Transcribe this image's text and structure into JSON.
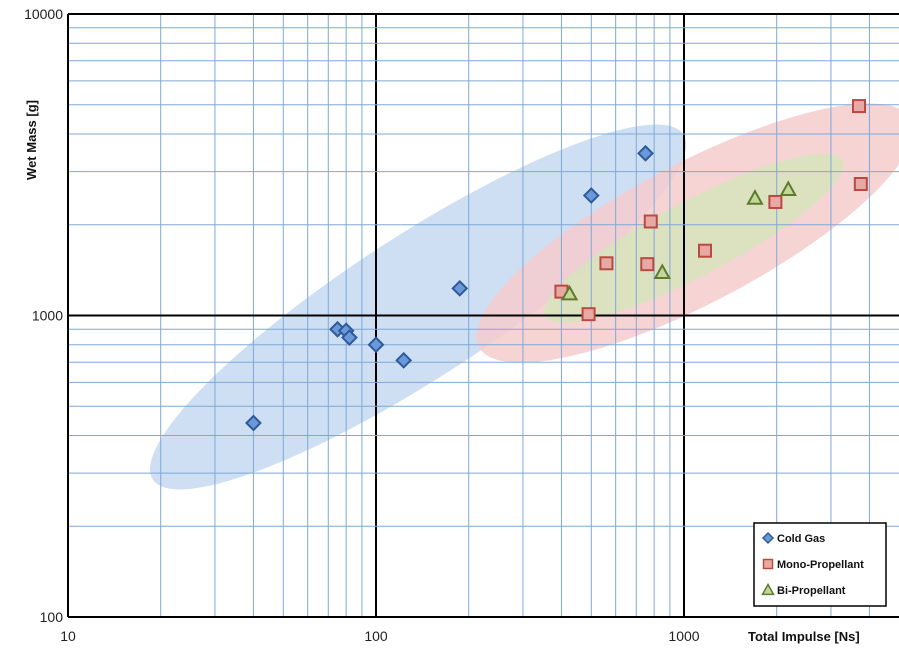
{
  "chart_data": {
    "type": "scatter",
    "title": "",
    "xlabel": "Total Impulse [Ns]",
    "ylabel": "Wet Mass [g]",
    "xscale": "log",
    "yscale": "log",
    "xlim": [
      10,
      7000
    ],
    "ylim": [
      100,
      10000
    ],
    "x_ticks": [
      10,
      100,
      1000
    ],
    "x_tick_labels": [
      "10",
      "100",
      "1000"
    ],
    "y_ticks": [
      100,
      1000,
      10000
    ],
    "y_tick_labels": [
      "100",
      "1000",
      "10000"
    ],
    "grid": true,
    "grid_color": "#7fa8d8",
    "major_grid_color": "#000000",
    "legend_position": "bottom-right",
    "series": [
      {
        "name": "Cold Gas",
        "marker": "diamond",
        "fill": "#6b98d8",
        "stroke": "#2e5a99",
        "points": [
          {
            "x": 40,
            "y": 440
          },
          {
            "x": 75,
            "y": 900
          },
          {
            "x": 80,
            "y": 890
          },
          {
            "x": 82,
            "y": 845
          },
          {
            "x": 100,
            "y": 800
          },
          {
            "x": 123,
            "y": 710
          },
          {
            "x": 187,
            "y": 1230
          },
          {
            "x": 500,
            "y": 2500
          },
          {
            "x": 750,
            "y": 3450
          }
        ]
      },
      {
        "name": "Mono-Propellant",
        "marker": "square",
        "fill": "#e8a9a4",
        "stroke": "#b84a42",
        "points": [
          {
            "x": 400,
            "y": 1200
          },
          {
            "x": 490,
            "y": 1010
          },
          {
            "x": 560,
            "y": 1490
          },
          {
            "x": 760,
            "y": 1480
          },
          {
            "x": 780,
            "y": 2050
          },
          {
            "x": 1170,
            "y": 1640
          },
          {
            "x": 1980,
            "y": 2380
          },
          {
            "x": 3700,
            "y": 4950
          },
          {
            "x": 3750,
            "y": 2730
          }
        ]
      },
      {
        "name": "Bi-Propellant",
        "marker": "triangle",
        "fill": "#c4d79b",
        "stroke": "#5e7a2b",
        "points": [
          {
            "x": 425,
            "y": 1180
          },
          {
            "x": 850,
            "y": 1390
          },
          {
            "x": 1700,
            "y": 2450
          },
          {
            "x": 2180,
            "y": 2620
          }
        ]
      }
    ],
    "regions": [
      {
        "series": "Cold Gas",
        "fill": "#c6d9f1"
      },
      {
        "series": "Mono-Propellant",
        "fill": "#f4cccc"
      },
      {
        "series": "Bi-Propellant",
        "fill": "#d7e3bc"
      }
    ]
  }
}
